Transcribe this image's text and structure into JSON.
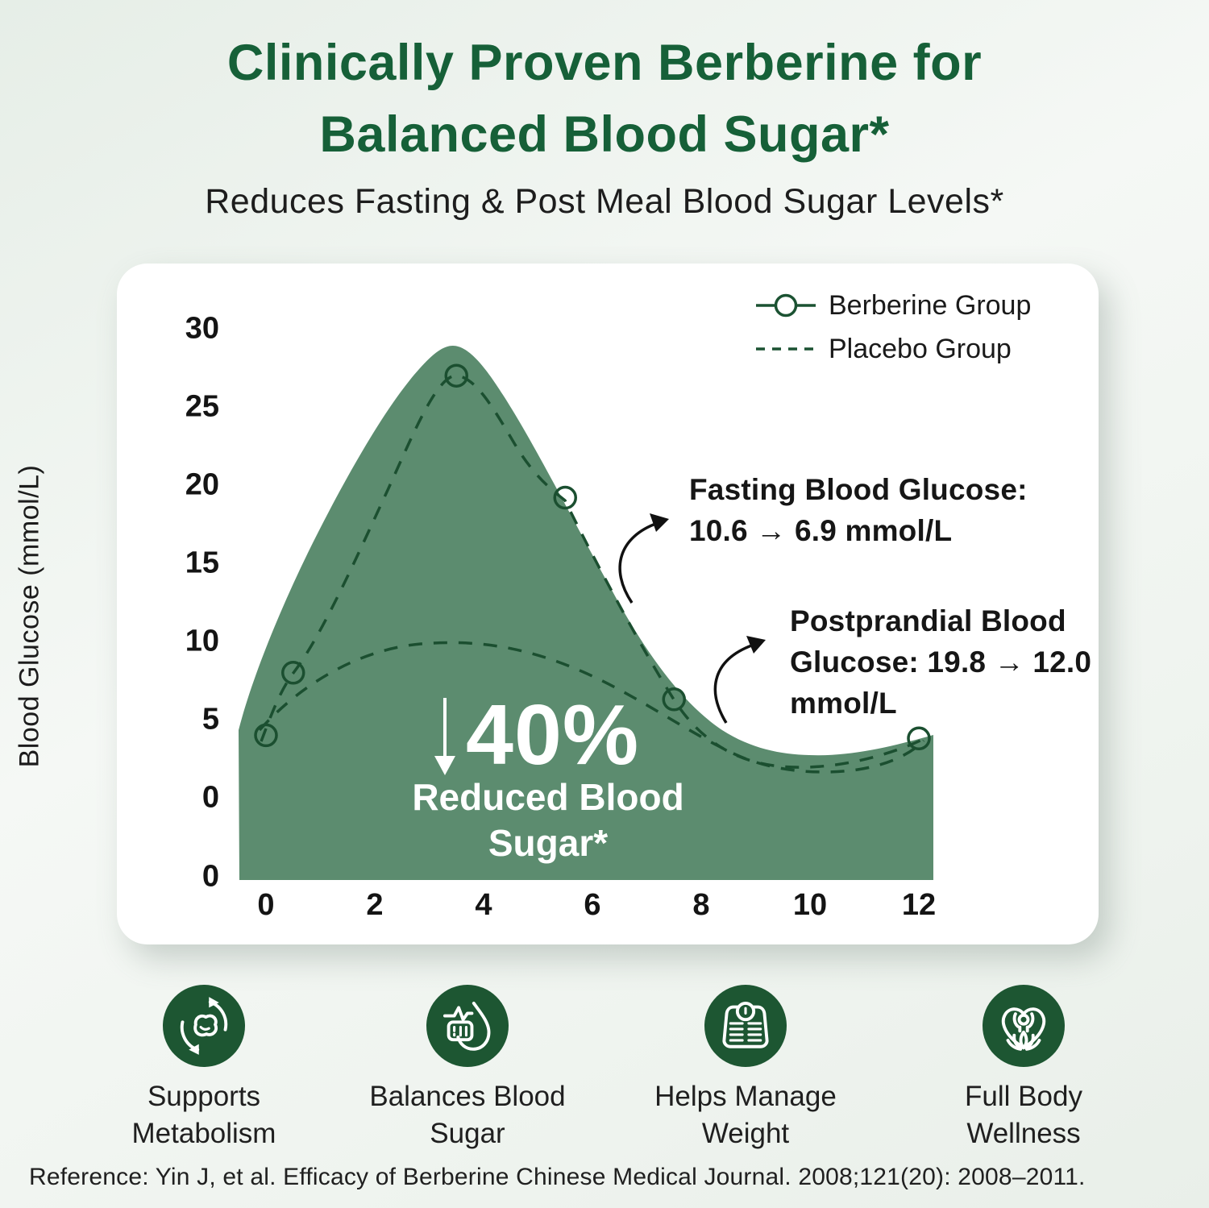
{
  "header": {
    "title_line1": "Clinically Proven Berberine for",
    "title_line2": "Balanced Blood Sugar*",
    "subtitle": "Reduces Fasting & Post Meal Blood Sugar Levels*",
    "title_color": "#166038"
  },
  "chart_card": {
    "legend": {
      "berberine_label": "Berberine Group",
      "placebo_label": "Placebo Group"
    },
    "y_axis": {
      "label": "Blood Glucose (mmol/L)",
      "ticks": [
        "30",
        "25",
        "20",
        "15",
        "10",
        "5",
        "0",
        "0"
      ]
    },
    "x_axis": {
      "ticks": [
        "0",
        "2",
        "4",
        "6",
        "8",
        "10",
        "12"
      ]
    },
    "annotations": {
      "fasting_line1": "Fasting Blood Glucose:",
      "fasting_line2": "10.6 → 6.9 mmol/L",
      "postprandial_line1": "Postprandial Blood",
      "postprandial_line2": "Glucose: 19.8 → 12.0",
      "postprandial_line3": "mmol/L"
    },
    "overlay": {
      "percent": "40%",
      "caption_line1": "Reduced Blood",
      "caption_line2": "Sugar*"
    }
  },
  "chart_data": {
    "type": "area",
    "title": "",
    "xlabel": "",
    "ylabel": "Blood Glucose (mmol/L)",
    "x_ticks": [
      0,
      2,
      4,
      6,
      8,
      10,
      12
    ],
    "y_ticks": [
      0,
      0,
      5,
      10,
      15,
      20,
      25,
      30
    ],
    "xlim": [
      0,
      12
    ],
    "ylim": [
      0,
      30
    ],
    "grid": false,
    "legend_position": "top-right",
    "series": [
      {
        "name": "Berberine Group",
        "style": "dashed line with open circle markers",
        "color": "#1b4f30",
        "points": [
          [
            0,
            4
          ],
          [
            0.5,
            8
          ],
          [
            3.5,
            27
          ],
          [
            5.5,
            19.2
          ],
          [
            7.5,
            6.3
          ],
          [
            12,
            3.8
          ]
        ]
      },
      {
        "name": "Placebo Group",
        "style": "dashed line",
        "color": "#1b4f30",
        "points": [
          [
            0,
            4.4
          ],
          [
            2,
            8.8
          ],
          [
            4,
            9.9
          ],
          [
            6,
            8.6
          ],
          [
            8,
            5.6
          ],
          [
            10,
            2.6
          ],
          [
            12,
            3.7
          ]
        ]
      }
    ],
    "area_fill_color": "#5c8c6f",
    "annotations": [
      "Fasting Blood Glucose: 10.6 → 6.9 mmol/L",
      "Postprandial Blood Glucose: 19.8 → 12.0 mmol/L",
      "↓ 40% Reduced Blood Sugar*"
    ]
  },
  "features": [
    {
      "icon": "metabolism-icon",
      "line1": "Supports",
      "line2": "Metabolism"
    },
    {
      "icon": "blood-sugar-icon",
      "line1": "Balances Blood",
      "line2": "Sugar"
    },
    {
      "icon": "weight-scale-icon",
      "line1": "Helps Manage",
      "line2": "Weight"
    },
    {
      "icon": "wellness-icon",
      "line1": "Full Body",
      "line2": "Wellness"
    }
  ],
  "footer": {
    "reference": "Reference: Yin J, et al. Efficacy of Berberine Chinese Medical Journal. 2008;121(20): 2008–2011."
  }
}
